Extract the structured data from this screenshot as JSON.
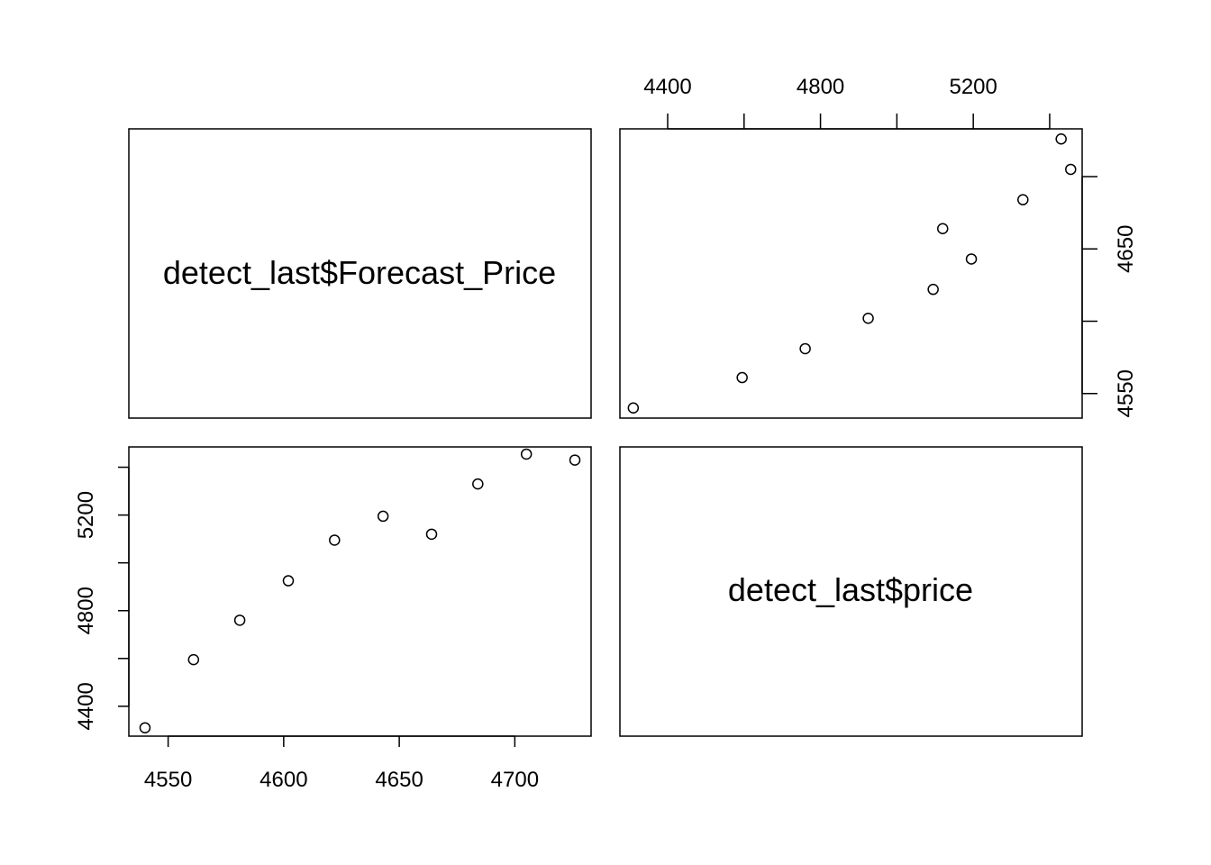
{
  "chart_data": {
    "type": "scatter",
    "variables": [
      "detect_last$Forecast_Price",
      "detect_last$price"
    ],
    "points": [
      {
        "forecast_price": 4540,
        "price": 4310
      },
      {
        "forecast_price": 4561,
        "price": 4595
      },
      {
        "forecast_price": 4581,
        "price": 4760
      },
      {
        "forecast_price": 4602,
        "price": 4925
      },
      {
        "forecast_price": 4622,
        "price": 5095
      },
      {
        "forecast_price": 4643,
        "price": 5195
      },
      {
        "forecast_price": 4664,
        "price": 5120
      },
      {
        "forecast_price": 4684,
        "price": 5330
      },
      {
        "forecast_price": 4705,
        "price": 5455
      },
      {
        "forecast_price": 4726,
        "price": 5430
      }
    ],
    "forecast_axis": {
      "ticks": [
        4550,
        4600,
        4650,
        4700
      ],
      "range": [
        4533,
        4733
      ]
    },
    "price_axis": {
      "ticks": [
        4400,
        4800,
        5200
      ],
      "minor_ticks": [
        4400,
        4600,
        4800,
        5000,
        5200,
        5400
      ],
      "range": [
        4275,
        5485
      ]
    },
    "forecast_axis_right": {
      "labels": [
        4550,
        4650
      ],
      "ticks": [
        4550,
        4600,
        4650,
        4700
      ]
    },
    "price_axis_left": {
      "labels": [
        4400,
        4800,
        5200
      ],
      "ticks": [
        4400,
        4600,
        4800,
        5000,
        5200,
        5400
      ]
    }
  }
}
